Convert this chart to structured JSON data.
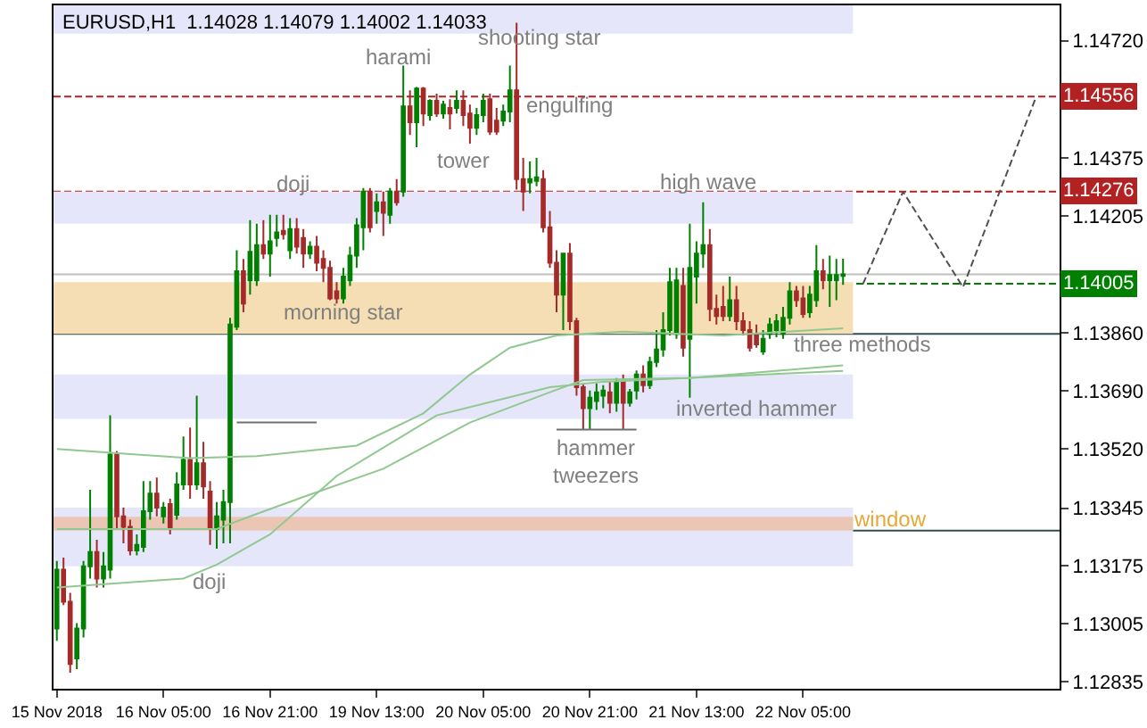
{
  "chart_data": {
    "type": "candlestick",
    "title": "EURUSD,H1  1.14028 1.14079 1.14002 1.14033",
    "categories": [
      "15 Nov 2018",
      null,
      null,
      null,
      null,
      null,
      null,
      null,
      null,
      null,
      null,
      null,
      null,
      null,
      null,
      null,
      "16 Nov 05:00",
      null,
      null,
      null,
      null,
      null,
      null,
      null,
      null,
      null,
      null,
      null,
      null,
      null,
      null,
      null,
      "16 Nov 21:00",
      null,
      null,
      null,
      null,
      null,
      null,
      null,
      null,
      null,
      null,
      null,
      null,
      null,
      null,
      null,
      "19 Nov 13:00",
      null,
      null,
      null,
      null,
      null,
      null,
      null,
      null,
      null,
      null,
      null,
      null,
      null,
      null,
      null,
      "20 Nov 05:00",
      null,
      null,
      null,
      null,
      null,
      null,
      null,
      null,
      null,
      null,
      null,
      null,
      null,
      null,
      null,
      "20 Nov 21:00",
      null,
      null,
      null,
      null,
      null,
      null,
      null,
      null,
      null,
      null,
      null,
      null,
      null,
      null,
      null,
      "21 Nov 13:00",
      null,
      null,
      null,
      null,
      null,
      null,
      null,
      null,
      null,
      null,
      null,
      null,
      null,
      null,
      null,
      "22 Nov 05:00",
      null,
      null,
      null,
      null,
      null,
      null,
      null,
      null,
      null,
      null,
      null,
      null,
      null,
      null,
      null,
      null,
      null,
      null,
      null,
      null,
      null,
      null,
      null,
      null,
      null,
      null,
      null,
      null,
      null,
      null,
      null,
      null,
      null,
      null,
      null
    ],
    "series": [
      {
        "type": "line",
        "color": "#90c890",
        "values": [
          1.13519,
          null,
          null,
          null,
          null,
          null,
          null,
          null,
          null,
          null,
          null,
          null,
          null,
          null,
          null,
          null,
          null,
          null,
          null,
          null,
          1.13492,
          null,
          null,
          null,
          null,
          null,
          null,
          null,
          null,
          null,
          1.13498,
          null,
          null,
          null,
          null,
          null,
          null,
          null,
          null,
          null,
          null,
          null,
          null,
          null,
          null,
          1.13529,
          null,
          null,
          null,
          null,
          null,
          null,
          null,
          null,
          null,
          1.13624,
          null,
          null,
          null,
          null,
          null,
          null,
          1.13738,
          null,
          null,
          null,
          null,
          null,
          1.13817,
          null,
          null,
          null,
          null,
          null,
          null,
          1.13853,
          null,
          null,
          null,
          null,
          null,
          null,
          null,
          null,
          null,
          1.13864,
          null,
          null,
          null,
          null,
          null,
          null,
          null,
          null,
          null,
          null,
          null,
          null,
          null,
          null,
          1.13853,
          null,
          null,
          null,
          null,
          null,
          null,
          null,
          null,
          null,
          null,
          null,
          null,
          null,
          null,
          null,
          null,
          null,
          1.13874,
          null,
          null,
          null,
          null,
          null,
          null,
          null,
          null,
          null,
          null,
          null,
          null,
          null,
          null,
          null,
          null,
          null,
          null,
          null,
          null,
          null,
          null,
          null,
          null,
          null,
          null,
          null,
          null,
          null
        ]
      },
      {
        "type": "line",
        "color": "#90c890",
        "values": [
          1.13284,
          null,
          null,
          null,
          null,
          null,
          null,
          null,
          null,
          null,
          null,
          null,
          null,
          null,
          null,
          null,
          null,
          null,
          null,
          null,
          null,
          null,
          null,
          null,
          1.13284,
          null,
          null,
          null,
          null,
          1.13321,
          null,
          null,
          null,
          null,
          null,
          null,
          null,
          1.13378,
          null,
          null,
          null,
          null,
          null,
          null,
          null,
          null,
          null,
          null,
          null,
          1.13461,
          null,
          null,
          null,
          null,
          null,
          null,
          null,
          null,
          null,
          null,
          null,
          null,
          1.13597,
          null,
          null,
          null,
          null,
          null,
          null,
          null,
          null,
          null,
          null,
          null,
          1.13686,
          null,
          null,
          null,
          null,
          1.13722,
          null,
          null,
          null,
          null,
          null,
          null,
          null,
          null,
          null,
          null,
          null,
          null,
          null,
          null,
          null,
          1.13728,
          null,
          null,
          null,
          null,
          null,
          null,
          null,
          null,
          null,
          null,
          null,
          null,
          null,
          null,
          null,
          null,
          null,
          null,
          null,
          null,
          null,
          null,
          1.13765,
          null,
          null,
          null,
          null,
          null,
          null,
          null,
          null,
          null,
          null,
          null,
          null,
          null,
          null,
          null,
          null,
          null,
          null,
          null,
          null,
          null,
          null,
          null,
          null,
          null,
          null,
          null,
          null,
          null
        ]
      },
      {
        "type": "line",
        "color": "#90c890",
        "values": [
          1.13112,
          null,
          null,
          null,
          null,
          null,
          null,
          null,
          null,
          null,
          null,
          null,
          null,
          null,
          null,
          null,
          null,
          null,
          null,
          1.13138,
          null,
          null,
          null,
          null,
          1.13179,
          null,
          null,
          null,
          null,
          null,
          null,
          null,
          1.13268,
          null,
          null,
          null,
          null,
          null,
          null,
          null,
          null,
          null,
          1.1344,
          null,
          null,
          null,
          null,
          null,
          null,
          null,
          null,
          null,
          null,
          null,
          null,
          null,
          null,
          1.13618,
          null,
          null,
          null,
          null,
          null,
          null,
          null,
          null,
          null,
          null,
          null,
          null,
          null,
          null,
          null,
          null,
          1.13701,
          null,
          null,
          null,
          null,
          null,
          null,
          null,
          1.13717,
          null,
          null,
          null,
          null,
          null,
          null,
          null,
          null,
          null,
          null,
          null,
          null,
          null,
          null,
          null,
          null,
          null,
          null,
          null,
          null,
          null,
          null,
          null,
          null,
          null,
          null,
          null,
          null,
          null,
          null,
          null,
          null,
          null,
          null,
          null,
          1.13749,
          null,
          null,
          null,
          null,
          null,
          null,
          null,
          null,
          null,
          null,
          null,
          null,
          null,
          null,
          null,
          null,
          null,
          null,
          null,
          null,
          null,
          null,
          null,
          null,
          null,
          null,
          null,
          null,
          null
        ]
      },
      {
        "type": "line",
        "color": "#707070",
        "values": [
          null,
          null,
          null,
          null,
          null,
          null,
          null,
          null,
          null,
          null,
          null,
          null,
          null,
          null,
          null,
          null,
          null,
          null,
          null,
          null,
          null,
          null,
          null,
          null,
          null,
          null,
          null,
          1.13597,
          null,
          null,
          null,
          null,
          null,
          null,
          null,
          null,
          null,
          null,
          null,
          1.13597,
          null,
          null,
          null,
          null,
          null,
          null,
          null,
          null,
          null,
          null,
          null,
          null,
          null,
          null,
          null,
          null,
          null,
          null,
          null,
          null,
          null,
          null,
          null,
          null,
          null,
          null,
          null,
          null,
          null,
          null,
          null,
          null,
          null,
          null,
          null,
          null,
          null,
          null,
          null,
          null,
          null,
          null,
          null,
          null,
          null,
          null,
          null,
          null,
          null,
          null,
          null,
          null,
          null,
          null,
          null,
          null,
          null,
          null,
          null,
          null,
          null,
          null,
          null,
          null,
          null,
          null,
          null,
          null,
          null,
          null,
          null,
          null,
          null,
          null,
          null,
          null,
          null,
          null,
          null,
          null,
          null,
          null,
          null,
          null,
          null,
          null,
          null,
          null,
          null,
          null,
          null,
          null,
          null,
          null,
          null,
          null,
          null,
          null,
          null,
          null,
          null,
          null,
          null,
          null,
          null,
          null,
          null,
          null
        ]
      },
      {
        "type": "line",
        "color": "#707070",
        "values": [
          null,
          null,
          null,
          null,
          null,
          null,
          null,
          null,
          null,
          null,
          null,
          null,
          null,
          null,
          null,
          null,
          null,
          null,
          null,
          null,
          null,
          null,
          null,
          null,
          null,
          null,
          null,
          null,
          null,
          null,
          null,
          null,
          null,
          null,
          null,
          null,
          null,
          null,
          null,
          null,
          null,
          null,
          null,
          null,
          null,
          null,
          null,
          null,
          null,
          null,
          null,
          null,
          null,
          null,
          null,
          null,
          null,
          null,
          null,
          null,
          null,
          null,
          null,
          null,
          null,
          null,
          null,
          null,
          null,
          null,
          null,
          null,
          null,
          null,
          null,
          1.13576,
          null,
          null,
          null,
          null,
          null,
          null,
          null,
          null,
          null,
          null,
          null,
          1.13576,
          null,
          null,
          null,
          null,
          null,
          null,
          null,
          null,
          null,
          null,
          null,
          null,
          null,
          null,
          null,
          null,
          null,
          null,
          null,
          null,
          null,
          null,
          null,
          null,
          null,
          null,
          null,
          null,
          null,
          null,
          null,
          null,
          null,
          null,
          null,
          null,
          null,
          null,
          null,
          null,
          null,
          null,
          null,
          null,
          null,
          null,
          null,
          null,
          null,
          null,
          null,
          null,
          null,
          null,
          null,
          null,
          null,
          null,
          null,
          null
        ]
      },
      {
        "type": "line",
        "color": "#505050",
        "line_style": "dashed",
        "values": [
          null,
          null,
          null,
          null,
          null,
          null,
          null,
          null,
          null,
          null,
          null,
          null,
          null,
          null,
          null,
          null,
          null,
          null,
          null,
          null,
          null,
          null,
          null,
          null,
          null,
          null,
          null,
          null,
          null,
          null,
          null,
          null,
          null,
          null,
          null,
          null,
          null,
          null,
          null,
          null,
          null,
          null,
          null,
          null,
          null,
          null,
          null,
          null,
          null,
          null,
          null,
          null,
          null,
          null,
          null,
          null,
          null,
          null,
          null,
          null,
          null,
          null,
          null,
          null,
          null,
          null,
          null,
          null,
          null,
          null,
          null,
          null,
          null,
          null,
          null,
          null,
          null,
          null,
          null,
          null,
          null,
          null,
          null,
          null,
          null,
          null,
          null,
          null,
          null,
          null,
          null,
          null,
          null,
          null,
          null,
          null,
          null,
          null,
          null,
          null,
          null,
          null,
          null,
          null,
          null,
          null,
          null,
          null,
          null,
          null,
          null,
          null,
          null,
          null,
          null,
          null,
          null,
          null,
          null,
          null,
          null,
          1.14005,
          null,
          null,
          null,
          null,
          null,
          1.14276,
          null,
          null,
          null,
          null,
          null,
          null,
          null,
          null,
          1.13995,
          null,
          null,
          null,
          null,
          null,
          null,
          null,
          null,
          null,
          null,
          1.14556
        ]
      },
      {
        "ohlc": [
          [
            1.12991,
            1.1319,
            1.12955,
            1.13164
          ],
          [
            1.13164,
            1.132,
            1.1306,
            1.1307
          ],
          [
            1.1307,
            1.13096,
            1.12861,
            1.12887
          ],
          [
            1.12903,
            1.13007,
            1.12872,
            1.12991
          ],
          [
            1.12991,
            1.1319,
            1.12965,
            1.13174
          ],
          [
            1.13174,
            1.13399,
            1.13138,
            1.13216
          ],
          [
            1.13216,
            1.13252,
            1.13112,
            1.13138
          ],
          [
            1.13138,
            1.13216,
            1.13112,
            1.13174
          ],
          [
            1.13164,
            1.13618,
            1.13138,
            1.13503
          ],
          [
            1.13503,
            1.13513,
            1.13284,
            1.13321
          ],
          [
            1.13321,
            1.13347,
            1.13242,
            1.1329
          ],
          [
            1.1329,
            1.13311,
            1.13206,
            1.13221
          ],
          [
            1.13221,
            1.13268,
            1.13206,
            1.13237
          ],
          [
            1.13231,
            1.13425,
            1.13216,
            1.13336
          ],
          [
            1.13336,
            1.13425,
            1.13311,
            1.13388
          ],
          [
            1.13388,
            1.13435,
            1.13321,
            1.13347
          ],
          [
            1.13321,
            1.13363,
            1.133,
            1.13347
          ],
          [
            1.13357,
            1.13373,
            1.13268,
            1.13284
          ],
          [
            1.13326,
            1.13451,
            1.13311,
            1.13415
          ],
          [
            1.13415,
            1.13556,
            1.13399,
            1.13487
          ],
          [
            1.13487,
            1.13582,
            1.13373,
            1.13415
          ],
          [
            1.13415,
            1.13676,
            1.13399,
            1.13477
          ],
          [
            1.13477,
            1.1354,
            1.13373,
            1.13409
          ],
          [
            1.13394,
            1.13425,
            1.13237,
            1.13284
          ],
          [
            1.13284,
            1.13363,
            1.13226,
            1.13321
          ],
          [
            1.13311,
            1.13399,
            1.13242,
            1.13363
          ],
          [
            1.13363,
            1.13905,
            1.13242,
            1.13885
          ],
          [
            1.13879,
            1.14104,
            1.13869,
            1.14042
          ],
          [
            1.14042,
            1.14078,
            1.13921,
            1.13947
          ],
          [
            1.14015,
            1.14192,
            1.13973,
            1.14099
          ],
          [
            1.14015,
            1.14182,
            1.13999,
            1.14119
          ],
          [
            1.14119,
            1.14192,
            1.14078,
            1.14094
          ],
          [
            1.14094,
            1.14208,
            1.14026,
            1.1413
          ],
          [
            1.1414,
            1.14208,
            1.14114,
            1.14156
          ],
          [
            1.14161,
            1.14208,
            1.14135,
            1.14151
          ],
          [
            1.14104,
            1.14198,
            1.14078,
            1.14166
          ],
          [
            1.14166,
            1.14198,
            1.14094,
            1.14114
          ],
          [
            1.1414,
            1.14166,
            1.14052,
            1.14094
          ],
          [
            1.14094,
            1.1413,
            1.14078,
            1.14114
          ],
          [
            1.14114,
            1.14146,
            1.14042,
            1.14067
          ],
          [
            1.14078,
            1.14104,
            1.1401,
            1.14052
          ],
          [
            1.14052,
            1.14073,
            1.13957,
            1.13962
          ],
          [
            1.13983,
            1.1401,
            1.13947,
            1.13962
          ],
          [
            1.13962,
            1.14052,
            1.13947,
            1.14026
          ],
          [
            1.14015,
            1.14114,
            1.13999,
            1.14088
          ],
          [
            1.14088,
            1.14198,
            1.14052,
            1.14177
          ],
          [
            1.14171,
            1.14287,
            1.14104,
            1.14276
          ],
          [
            1.14276,
            1.14287,
            1.14156,
            1.14171
          ],
          [
            1.14219,
            1.14271,
            1.14182,
            1.14245
          ],
          [
            1.14245,
            1.14276,
            1.14146,
            1.14214
          ],
          [
            1.14208,
            1.14287,
            1.14182,
            1.14276
          ],
          [
            1.14276,
            1.14313,
            1.14235,
            1.14245
          ],
          [
            1.14276,
            1.14647,
            1.14261,
            1.14527
          ],
          [
            1.14527,
            1.14574,
            1.14443,
            1.1448
          ],
          [
            1.1448,
            1.14584,
            1.14407,
            1.14579
          ],
          [
            1.14579,
            1.14584,
            1.14469,
            1.14506
          ],
          [
            1.14501,
            1.14548,
            1.14485,
            1.14543
          ],
          [
            1.14543,
            1.14564,
            1.14496,
            1.14506
          ],
          [
            1.14506,
            1.14543,
            1.14491,
            1.14532
          ],
          [
            1.14522,
            1.14548,
            1.14459,
            1.14506
          ],
          [
            1.14522,
            1.14574,
            1.14506,
            1.14543
          ],
          [
            1.14543,
            1.14574,
            1.14469,
            1.14501
          ],
          [
            1.14506,
            1.14532,
            1.14417,
            1.14464
          ],
          [
            1.14464,
            1.14522,
            1.14443,
            1.14501
          ],
          [
            1.14501,
            1.14564,
            1.1448,
            1.14543
          ],
          [
            1.14548,
            1.14564,
            1.14443,
            1.14453
          ],
          [
            1.14485,
            1.14522,
            1.14443,
            1.14453
          ],
          [
            1.14485,
            1.14532,
            1.14469,
            1.14512
          ],
          [
            1.14512,
            1.14647,
            1.1448,
            1.14574
          ],
          [
            1.14574,
            1.14773,
            1.14282,
            1.14313
          ],
          [
            1.14313,
            1.14375,
            1.14219,
            1.14276
          ],
          [
            1.14303,
            1.14365,
            1.14271,
            1.14313
          ],
          [
            1.14308,
            1.14375,
            1.14292,
            1.14318
          ],
          [
            1.14313,
            1.14339,
            1.14156,
            1.14171
          ],
          [
            1.14171,
            1.14219,
            1.14052,
            1.14067
          ],
          [
            1.14067,
            1.14104,
            1.13921,
            1.13973
          ],
          [
            1.13973,
            1.14094,
            1.13869,
            1.14094
          ],
          [
            1.14094,
            1.14125,
            1.13869,
            1.13895
          ],
          [
            1.13895,
            1.13905,
            1.13676,
            1.13701
          ],
          [
            1.13701,
            1.13712,
            1.13577,
            1.13639
          ],
          [
            1.13639,
            1.13691,
            1.13577,
            1.1367
          ],
          [
            1.1366,
            1.13712,
            1.13634,
            1.13686
          ],
          [
            1.13676,
            1.13707,
            1.13639,
            1.13691
          ],
          [
            1.13686,
            1.13717,
            1.13624,
            1.13655
          ],
          [
            1.13655,
            1.13728,
            1.13629,
            1.13717
          ],
          [
            1.13717,
            1.13738,
            1.13577,
            1.13655
          ],
          [
            1.13655,
            1.13696,
            1.13644,
            1.13686
          ],
          [
            1.13691,
            1.1375,
            1.13665,
            1.13738
          ],
          [
            1.13738,
            1.13765,
            1.13686,
            1.13707
          ],
          [
            1.13707,
            1.13791,
            1.13696,
            1.13775
          ],
          [
            1.13775,
            1.13869,
            1.1376,
            1.13812
          ],
          [
            1.13812,
            1.13921,
            1.13791,
            1.13869
          ],
          [
            1.13869,
            1.14052,
            1.13853,
            1.1401
          ],
          [
            1.13858,
            1.14052,
            1.13843,
            1.14015
          ],
          [
            1.13999,
            1.14052,
            1.13791,
            1.13817
          ],
          [
            1.13843,
            1.14182,
            1.1367,
            1.14052
          ],
          [
            1.14026,
            1.1413,
            1.13947,
            1.14094
          ],
          [
            1.14094,
            1.14245,
            1.14052,
            1.14119
          ],
          [
            1.14119,
            1.14166,
            1.13895,
            1.13931
          ],
          [
            1.13931,
            1.13973,
            1.13885,
            1.1391
          ],
          [
            1.13937,
            1.13999,
            1.13895,
            1.1391
          ],
          [
            1.1391,
            1.14026,
            1.13895,
            1.13957
          ],
          [
            1.13957,
            1.13999,
            1.13869,
            1.13895
          ],
          [
            1.13895,
            1.13921,
            1.13853,
            1.13869
          ],
          [
            1.13869,
            1.13895,
            1.13806,
            1.13817
          ],
          [
            1.13853,
            1.13885,
            1.13817,
            1.13827
          ],
          [
            1.13806,
            1.13869,
            1.13796,
            1.13843
          ],
          [
            1.13858,
            1.13905,
            1.13843,
            1.13885
          ],
          [
            1.13869,
            1.13916,
            1.13848,
            1.13895
          ],
          [
            1.13858,
            1.13937,
            1.13843,
            1.13905
          ],
          [
            1.13905,
            1.1401,
            1.13885,
            1.13983
          ],
          [
            1.13983,
            1.13999,
            1.13937,
            1.13957
          ],
          [
            1.13962,
            1.13999,
            1.13905,
            1.13916
          ],
          [
            1.13921,
            1.13999,
            1.13905,
            1.13973
          ],
          [
            1.13957,
            1.14119,
            1.13937,
            1.14042
          ],
          [
            1.14042,
            1.14078,
            1.13989,
            1.14015
          ],
          [
            1.14015,
            1.14088,
            1.13937,
            1.14031
          ],
          [
            1.14015,
            1.14078,
            1.13957,
            1.14031
          ],
          [
            1.14028,
            1.14079,
            1.14002,
            1.14033
          ],
          null,
          null,
          null,
          null,
          null,
          null,
          null,
          null,
          null,
          null,
          null,
          null,
          null,
          null,
          null,
          null,
          null,
          null,
          null,
          null,
          null,
          null,
          null,
          null,
          null,
          null,
          null,
          null,
          null
        ],
        "colors": [
          "#008000",
          "#a52a2a",
          "#a52a2a",
          "#008000",
          "#008000",
          "#008000",
          "#a52a2a",
          "#008000",
          "#008000",
          "#a52a2a",
          "#a52a2a",
          "#a52a2a",
          "#008000",
          "#008000",
          "#008000",
          "#a52a2a",
          "#008000",
          "#a52a2a",
          "#008000",
          "#008000",
          "#a52a2a",
          "#008000",
          "#a52a2a",
          "#a52a2a",
          "#008000",
          "#008000",
          "#008000",
          "#008000",
          "#a52a2a",
          "#008000",
          "#008000",
          "#a52a2a",
          "#008000",
          "#008000",
          "#a52a2a",
          "#008000",
          "#a52a2a",
          "#a52a2a",
          "#008000",
          "#a52a2a",
          "#a52a2a",
          "#a52a2a",
          "#a52a2a",
          "#008000",
          "#008000",
          "#008000",
          "#008000",
          "#a52a2a",
          "#008000",
          "#a52a2a",
          "#008000",
          "#a52a2a",
          "#008000",
          "#a52a2a",
          "#008000",
          "#a52a2a",
          "#008000",
          "#a52a2a",
          "#008000",
          "#a52a2a",
          "#008000",
          "#a52a2a",
          "#a52a2a",
          "#008000",
          "#008000",
          "#a52a2a",
          "#a52a2a",
          "#008000",
          "#008000",
          "#a52a2a",
          "#a52a2a",
          "#008000",
          "#008000",
          "#a52a2a",
          "#a52a2a",
          "#a52a2a",
          "#008000",
          "#a52a2a",
          "#a52a2a",
          "#a52a2a",
          "#008000",
          "#008000",
          "#008000",
          "#a52a2a",
          "#008000",
          "#a52a2a",
          "#008000",
          "#008000",
          "#a52a2a",
          "#008000",
          "#008000",
          "#008000",
          "#008000",
          "#008000",
          "#a52a2a",
          "#008000",
          "#008000",
          "#008000",
          "#a52a2a",
          "#a52a2a",
          "#a52a2a",
          "#008000",
          "#a52a2a",
          "#a52a2a",
          "#a52a2a",
          "#a52a2a",
          "#008000",
          "#008000",
          "#008000",
          "#008000",
          "#008000",
          "#a52a2a",
          "#a52a2a",
          "#008000",
          "#008000",
          "#a52a2a",
          "#008000",
          "#008000",
          "#008000",
          null,
          null,
          null,
          null,
          null,
          null,
          null,
          null,
          null,
          null,
          null,
          null,
          null,
          null,
          null,
          null,
          null,
          null,
          null,
          null,
          null,
          null,
          null,
          null,
          null,
          null,
          null,
          null,
          null
        ]
      }
    ],
    "ylim": [
      1.12814,
      1.14824
    ],
    "yticks": [
      {
        "value": 1.1472,
        "label": "1.14720"
      },
      1.14375,
      1.14205,
      {
        "value": 1.1386,
        "label": "1.13860"
      },
      {
        "value": 1.1369,
        "label": "1.13690"
      },
      {
        "value": 1.1352,
        "label": "1.13520"
      },
      1.13345,
      1.13175,
      1.13005,
      1.12835
    ],
    "bands": [
      {
        "axis": "y",
        "from": 1.14741,
        "to": 1.14824,
        "color": "#e6e6fa"
      },
      {
        "axis": "y",
        "from": 1.14182,
        "to": 1.14276,
        "color": "#e6e6fa"
      },
      {
        "axis": "y",
        "from": 1.13858,
        "to": 1.1401,
        "color": "#f5deb3"
      },
      {
        "axis": "y",
        "from": 1.13608,
        "to": 1.13738,
        "color": "#e6e6fa"
      },
      {
        "axis": "y",
        "from": 1.13174,
        "to": 1.13347,
        "color": "#e6e6fa"
      },
      {
        "axis": "y",
        "from": 1.13279,
        "to": 1.1332,
        "color": "#ecc6b4"
      }
    ],
    "ref_lines": [
      {
        "axis": "y",
        "value": 1.14556,
        "label": "1.14556",
        "color": "#b22222",
        "line_style": "dashed"
      },
      {
        "axis": "y",
        "value": 1.14276,
        "label": "1.14276",
        "color": "#b22222",
        "line_style": "dashed"
      },
      {
        "axis": "y",
        "value": 1.14005,
        "label": "1.14005",
        "color": "#008000",
        "line_style": "dashed"
      },
      {
        "axis": "y",
        "value": 1.14033,
        "color": "#c0c0c0",
        "line_style": "solid"
      },
      {
        "axis": "y",
        "value": 1.13858,
        "color": "#2f4f4f",
        "line_style": "solid"
      },
      {
        "axis": "y",
        "value": 1.13279,
        "color": "#2f4f4f",
        "line_style": "solid"
      }
    ],
    "annotations": [
      "shooting star",
      "harami",
      "engulfing",
      "tower",
      "doji",
      "high wave",
      "morning star",
      "three methods",
      "inverted hammer",
      "hammer\ntweezers",
      "window",
      "doji"
    ]
  }
}
